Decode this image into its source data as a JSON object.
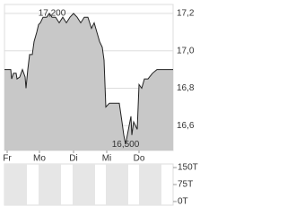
{
  "chart_data": {
    "type": "area",
    "x": [
      0,
      7,
      8,
      10,
      13,
      14,
      17,
      20,
      23,
      24,
      26,
      28,
      31,
      33,
      36,
      38,
      40,
      43,
      47,
      50,
      53,
      57,
      61,
      65,
      69,
      73,
      77,
      81,
      85,
      89,
      93,
      97,
      100,
      103,
      106,
      109,
      111,
      113,
      117,
      121,
      125,
      128,
      131,
      133,
      135,
      137,
      139,
      141,
      142,
      144,
      146,
      148,
      150,
      153,
      156,
      160,
      165,
      170,
      175,
      188
    ],
    "values": [
      16.9,
      16.9,
      16.85,
      16.88,
      16.88,
      16.85,
      16.86,
      16.9,
      16.86,
      16.8,
      16.9,
      16.98,
      16.98,
      17.05,
      17.1,
      17.14,
      17.15,
      17.18,
      17.18,
      17.2,
      17.18,
      17.18,
      17.15,
      17.18,
      17.15,
      17.18,
      17.2,
      17.18,
      17.15,
      17.18,
      17.18,
      17.12,
      17.15,
      17.1,
      17.05,
      17.02,
      16.95,
      16.7,
      16.72,
      16.72,
      16.72,
      16.72,
      16.62,
      16.55,
      16.5,
      16.55,
      16.6,
      16.65,
      16.55,
      16.62,
      16.6,
      16.58,
      16.82,
      16.8,
      16.85,
      16.85,
      16.88,
      16.9,
      16.9,
      16.9
    ],
    "color": "#c8c8c8",
    "line_color": "#222222",
    "xlim": [
      0,
      188
    ],
    "ylim": [
      16.467,
      17.248
    ],
    "xticks": [
      {
        "value": 3,
        "label": "Fr"
      },
      {
        "value": 39,
        "label": "Mo"
      },
      {
        "value": 77,
        "label": "Di"
      },
      {
        "value": 114,
        "label": "Mi"
      },
      {
        "value": 150,
        "label": "Do"
      }
    ],
    "yticks": [
      {
        "value": 16.6,
        "label": "16,6"
      },
      {
        "value": 16.8,
        "label": "16,8"
      },
      {
        "value": 17.0,
        "label": "17,0"
      },
      {
        "value": 17.2,
        "label": "17,2"
      }
    ],
    "grid": true,
    "annotations": [
      {
        "text": "17,200",
        "x": 53,
        "y": 17.2
      },
      {
        "text": "16,500",
        "x": 135,
        "y": 16.5
      }
    ],
    "volume": {
      "ylim": [
        -16,
        166
      ],
      "yticks": [
        {
          "value": 0,
          "label": "0T"
        },
        {
          "value": 75,
          "label": "75T"
        },
        {
          "value": 150,
          "label": "150T"
        }
      ]
    }
  }
}
